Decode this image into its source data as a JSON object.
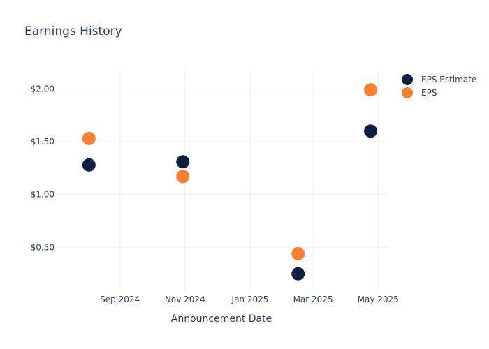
{
  "chart_data": {
    "type": "scatter",
    "title": "Earnings History",
    "xlabel": "Announcement Date",
    "ylabel": "",
    "x_ticks": [
      {
        "date": "2024-09-01",
        "label": "Sep 2024"
      },
      {
        "date": "2024-11-01",
        "label": "Nov 2024"
      },
      {
        "date": "2025-01-01",
        "label": "Jan 2025"
      },
      {
        "date": "2025-03-01",
        "label": "Mar 2025"
      },
      {
        "date": "2025-05-01",
        "label": "May 2025"
      }
    ],
    "y_ticks": [
      {
        "value": 0.5,
        "label": "$0.50"
      },
      {
        "value": 1.0,
        "label": "$1.00"
      },
      {
        "value": 1.5,
        "label": "$1.50"
      },
      {
        "value": 2.0,
        "label": "$2.00"
      }
    ],
    "xlim": [
      "2024-07-03",
      "2025-05-10"
    ],
    "ylim": [
      0.08,
      2.18
    ],
    "grid": true,
    "legend_position": "top-right",
    "series": [
      {
        "name": "EPS Estimate",
        "color": "#0c1f3f",
        "points": [
          {
            "x": "2024-08-03",
            "y": 1.28
          },
          {
            "x": "2024-10-30",
            "y": 1.31
          },
          {
            "x": "2025-02-15",
            "y": 0.25
          },
          {
            "x": "2025-04-24",
            "y": 1.6
          }
        ]
      },
      {
        "name": "EPS",
        "color": "#f58233",
        "points": [
          {
            "x": "2024-08-03",
            "y": 1.53
          },
          {
            "x": "2024-10-30",
            "y": 1.17
          },
          {
            "x": "2025-02-15",
            "y": 0.44
          },
          {
            "x": "2025-04-24",
            "y": 1.99
          }
        ]
      }
    ]
  }
}
